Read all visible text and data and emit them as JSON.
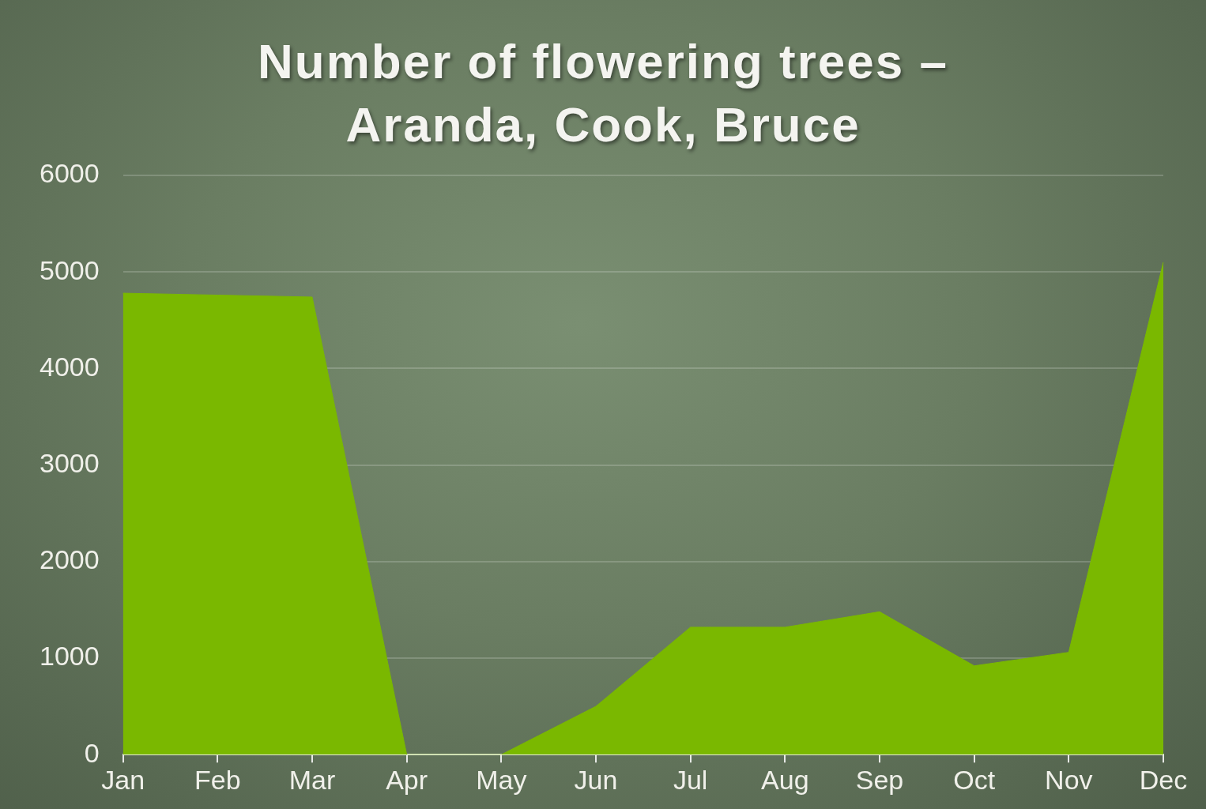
{
  "chart_data": {
    "type": "area",
    "title": "Number of flowering trees –\nAranda, Cook, Bruce",
    "categories": [
      "Jan",
      "Feb",
      "Mar",
      "Apr",
      "May",
      "Jun",
      "Jul",
      "Aug",
      "Sep",
      "Oct",
      "Nov",
      "Dec"
    ],
    "values": [
      4780,
      4760,
      4740,
      0,
      0,
      500,
      1320,
      1320,
      1480,
      920,
      1060,
      5100
    ],
    "color": "#7ab800",
    "ylim": [
      0,
      6000
    ],
    "yticks": [
      0,
      1000,
      2000,
      3000,
      4000,
      5000,
      6000
    ],
    "grid": "y",
    "legend": false
  }
}
